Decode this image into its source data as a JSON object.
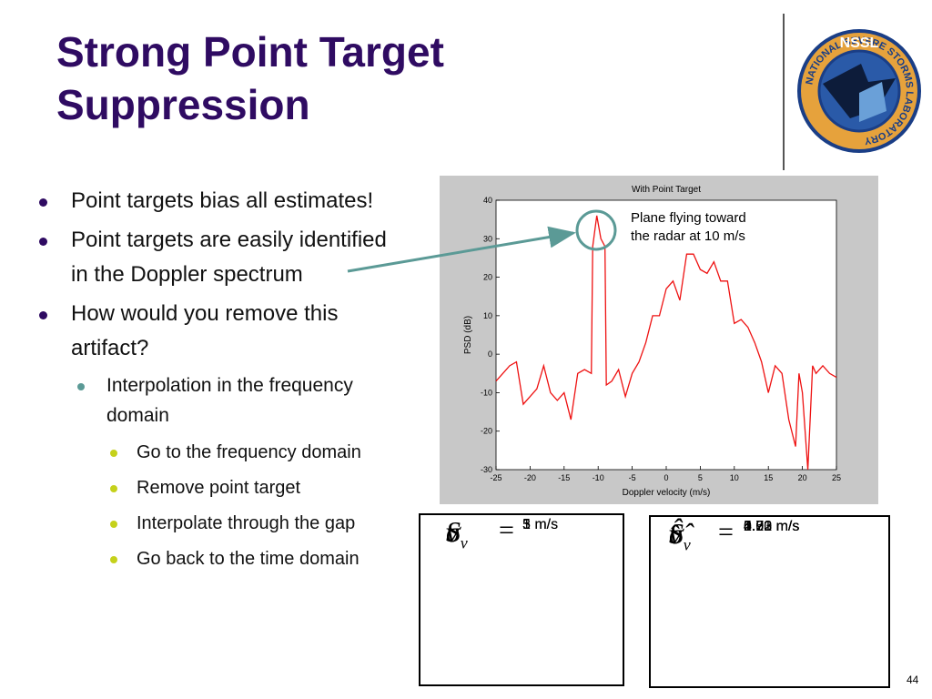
{
  "title": [
    "Strong Point Target",
    "Suppression"
  ],
  "bullets": [
    {
      "text": "Point targets bias all estimates!",
      "level": 1
    },
    {
      "text": "Point targets are easily identified in the Doppler spectrum",
      "level": 1
    },
    {
      "text": "How would you remove this artifact?",
      "level": 1
    },
    {
      "text": "Interpolation in the frequency domain",
      "level": 2
    },
    {
      "text": "Go to the frequency domain",
      "level": 3
    },
    {
      "text": "Remove point target",
      "level": 3
    },
    {
      "text": "Interpolate through the gap",
      "level": 3
    },
    {
      "text": "Go back to the time domain",
      "level": 3
    }
  ],
  "logo": {
    "text": "NSSL",
    "ring": "NATIONAL SEVERE STORMS LABORATORY"
  },
  "truth_box": [
    {
      "symbol": "S",
      "sub": null,
      "value": "1"
    },
    {
      "symbol": "v",
      "sub": null,
      "value": "5 m/s"
    },
    {
      "symbol": "σ",
      "sub": "v",
      "value": "3 m/s"
    }
  ],
  "estimate_box": [
    {
      "symbol": "Ŝ",
      "sub": null,
      "values": [
        "0.93",
        "1.01"
      ]
    },
    {
      "symbol": "v̂",
      "sub": null,
      "values": [
        "4.70 m/s",
        "4.53 m/s"
      ]
    },
    {
      "symbol": "σ̂",
      "sub": "v",
      "values": [
        "2.72 m/s",
        "5.23 m/s"
      ]
    }
  ],
  "slide_number": "44",
  "chart_data": {
    "type": "line",
    "title": "With Point Target",
    "xlabel": "Doppler velocity (m/s)",
    "ylabel": "PSD (dB)",
    "annotation": [
      "Plane flying toward",
      "the radar at 10 m/s"
    ],
    "x": [
      -25,
      -24,
      -23,
      -22,
      -21,
      -20,
      -19,
      -18,
      -17,
      -16,
      -15,
      -14,
      -13,
      -12,
      -11,
      -10.8,
      -10.2,
      -9.6,
      -9,
      -8.8,
      -8,
      -7,
      -6,
      -5,
      -4,
      -3,
      -2,
      -1,
      0,
      1,
      2,
      3,
      4,
      5,
      6,
      7,
      8,
      9,
      10,
      11,
      12,
      13,
      14,
      15,
      16,
      17,
      18,
      19,
      19.5,
      20,
      20.8,
      21.5,
      22,
      23,
      24,
      25
    ],
    "values": [
      -7,
      -5,
      -3,
      -2,
      -13,
      -11,
      -9,
      -3,
      -10,
      -12,
      -10,
      -17,
      -5,
      -4,
      -5,
      28,
      36,
      30,
      28,
      -8,
      -7,
      -4,
      -11,
      -5,
      -2,
      3,
      10,
      10,
      17,
      19,
      14,
      26,
      26,
      22,
      21,
      24,
      19,
      19,
      8,
      9,
      7,
      3,
      -2,
      -10,
      -3,
      -5,
      -17,
      -24,
      -5,
      -10,
      -30,
      -3,
      -5,
      -3,
      -5,
      -6
    ],
    "color": "#ee1111",
    "xlim": [
      -25,
      25
    ],
    "ylim": [
      -30,
      40
    ],
    "xticks": [
      -25,
      -20,
      -15,
      -10,
      -5,
      0,
      5,
      10,
      15,
      20,
      25
    ],
    "yticks": [
      -30,
      -20,
      -10,
      0,
      10,
      20,
      30,
      40
    ]
  }
}
